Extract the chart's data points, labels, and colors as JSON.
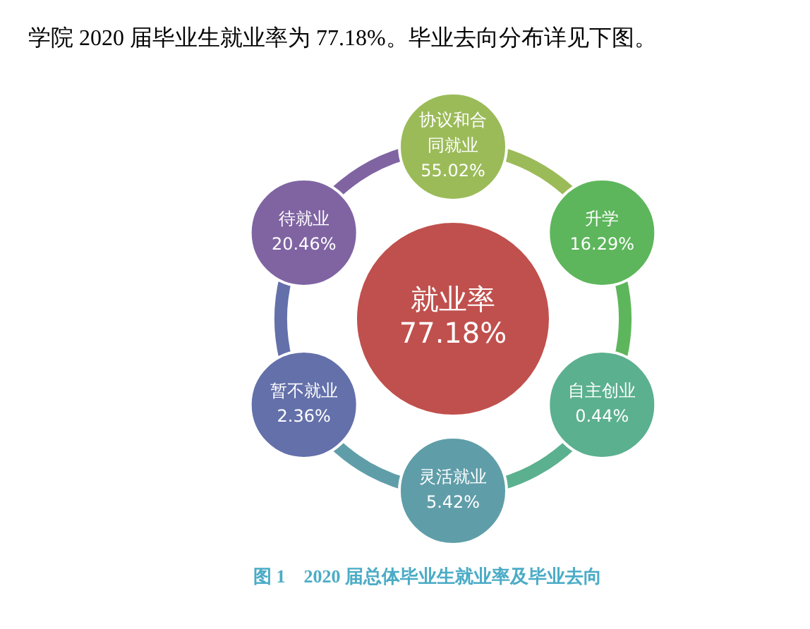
{
  "chart_data": {
    "type": "other",
    "title": "图 1　2020 届总体毕业生就业率及毕业去向",
    "annotations": [
      "学院 2020 届毕业生就业率为 77.18%。毕业去向分布详见下图。"
    ],
    "categories": [
      "就业率",
      "协议和合同就业",
      "升学",
      "自主创业",
      "灵活就业",
      "暂不就业",
      "待就业"
    ],
    "values": [
      77.18,
      55.02,
      16.29,
      0.44,
      5.42,
      2.36,
      20.46
    ],
    "value_labels": [
      "77.18%",
      "55.02%",
      "16.29%",
      "0.44%",
      "5.42%",
      "2.36%",
      "20.46%"
    ],
    "colors": [
      "#c0504d",
      "#9bbb59",
      "#5db65b",
      "#5bb08f",
      "#5f9ea9",
      "#6470aa",
      "#8064a2"
    ]
  }
}
